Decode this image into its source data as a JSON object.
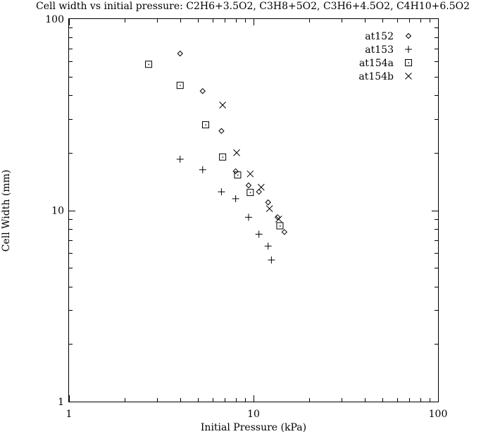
{
  "chart_data": {
    "type": "scatter",
    "title": "Cell width vs initial pressure: C2H6+3.5O2, C3H8+5O2, C3H6+4.5O2, C4H10+6.5O2",
    "xlabel": "Initial Pressure (kPa)",
    "ylabel": "Cell Width (mm)",
    "xscale": "log",
    "yscale": "log",
    "xlim": [
      1,
      100
    ],
    "ylim": [
      1,
      100
    ],
    "xticks": [
      "1",
      "10",
      "100"
    ],
    "yticks": [
      "1",
      "10",
      "100"
    ],
    "grid": false,
    "legend": "top-right",
    "series": [
      {
        "name": "at152",
        "marker": "diamond",
        "points": [
          [
            4.0,
            66
          ],
          [
            5.3,
            42
          ],
          [
            6.7,
            26
          ],
          [
            8.0,
            16
          ],
          [
            9.4,
            13.5
          ],
          [
            10.7,
            12.5
          ],
          [
            12.0,
            11
          ],
          [
            13.5,
            9.2
          ],
          [
            14.7,
            7.7
          ]
        ]
      },
      {
        "name": "at153",
        "marker": "plus",
        "points": [
          [
            4.0,
            18.5
          ],
          [
            5.3,
            16.3
          ],
          [
            6.7,
            12.5
          ],
          [
            8.0,
            11.5
          ],
          [
            9.4,
            9.2
          ],
          [
            10.7,
            7.5
          ],
          [
            12.0,
            6.5
          ],
          [
            12.5,
            5.5
          ]
        ]
      },
      {
        "name": "at154a",
        "marker": "square",
        "points": [
          [
            2.7,
            58
          ],
          [
            4.0,
            45
          ],
          [
            5.5,
            28
          ],
          [
            6.8,
            19
          ],
          [
            8.2,
            15.3
          ],
          [
            9.6,
            12.4
          ],
          [
            13.9,
            8.3
          ]
        ]
      },
      {
        "name": "at154b",
        "marker": "cross",
        "points": [
          [
            6.8,
            35.5
          ],
          [
            8.1,
            20
          ],
          [
            9.6,
            15.5
          ],
          [
            11.0,
            13.2
          ],
          [
            12.2,
            10.2
          ],
          [
            13.7,
            9.0
          ]
        ]
      }
    ]
  }
}
